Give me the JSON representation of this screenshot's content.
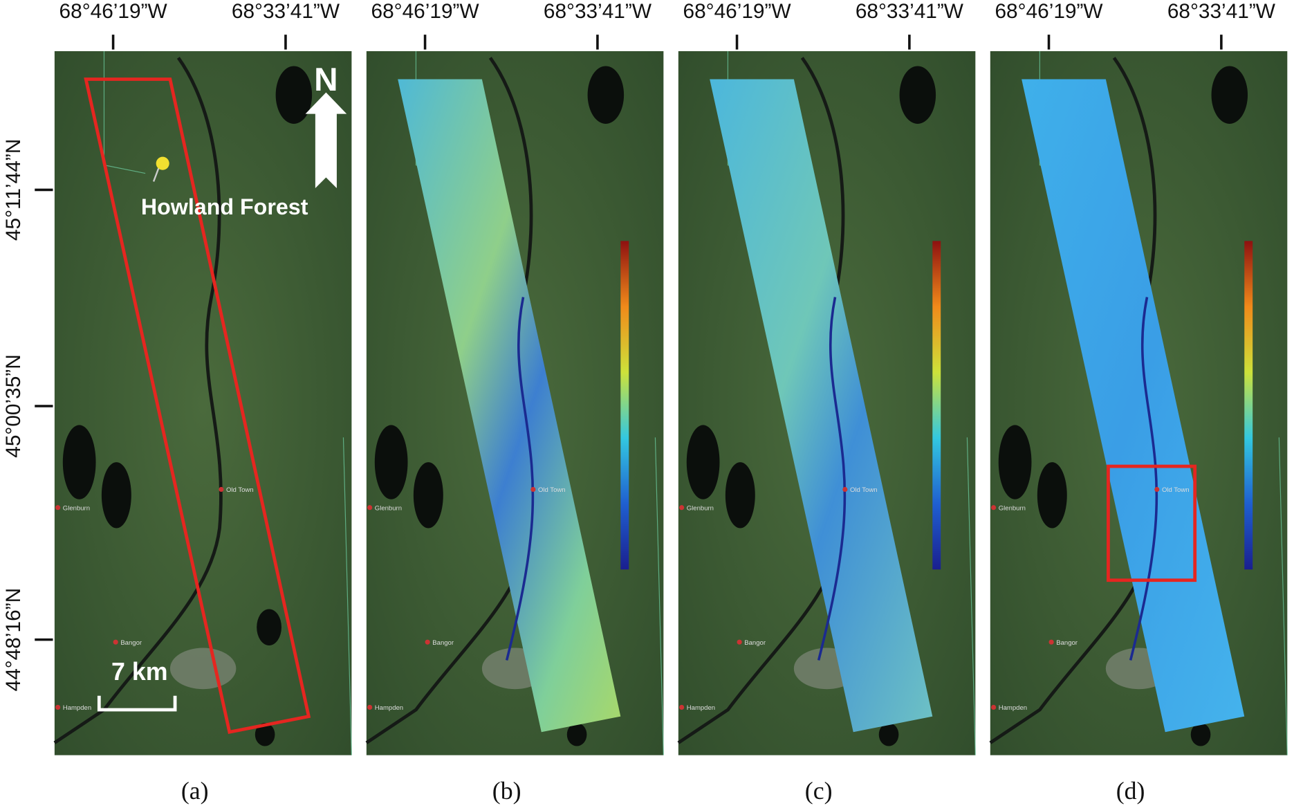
{
  "longitude_labels": [
    "68°46’19”W",
    "68°33’41”W"
  ],
  "latitude_labels": [
    "45°11’44”N",
    "45°00’35”N",
    "44°48’16”N"
  ],
  "panels": [
    {
      "label": "(a)"
    },
    {
      "label": "(b)"
    },
    {
      "label": "(c)"
    },
    {
      "label": "(d)"
    }
  ],
  "annotations": {
    "north": "N",
    "site": "Howland Forest",
    "scale_bar": "7 km"
  },
  "places": [
    "Old Town",
    "Glenburn",
    "Bangor",
    "Hampden"
  ]
}
